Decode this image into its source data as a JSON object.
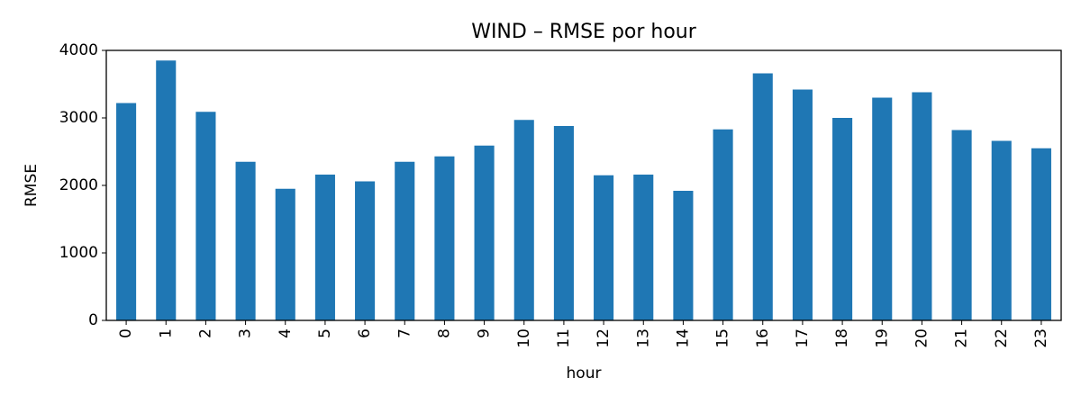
{
  "chart_data": {
    "type": "bar",
    "title": "WIND – RMSE por hour",
    "xlabel": "hour",
    "ylabel": "RMSE",
    "ylim": [
      0,
      4000
    ],
    "yticks": [
      0,
      1000,
      2000,
      3000,
      4000
    ],
    "grid": false,
    "bar_color": "#1f77b4",
    "categories": [
      "0",
      "1",
      "2",
      "3",
      "4",
      "5",
      "6",
      "7",
      "8",
      "9",
      "10",
      "11",
      "12",
      "13",
      "14",
      "15",
      "16",
      "17",
      "18",
      "19",
      "20",
      "21",
      "22",
      "23"
    ],
    "values": [
      3220,
      3850,
      3090,
      2350,
      1950,
      2160,
      2060,
      2350,
      2430,
      2590,
      2970,
      2880,
      2150,
      2160,
      1920,
      2830,
      3660,
      3420,
      3000,
      3300,
      3380,
      2820,
      2660,
      2550
    ]
  }
}
